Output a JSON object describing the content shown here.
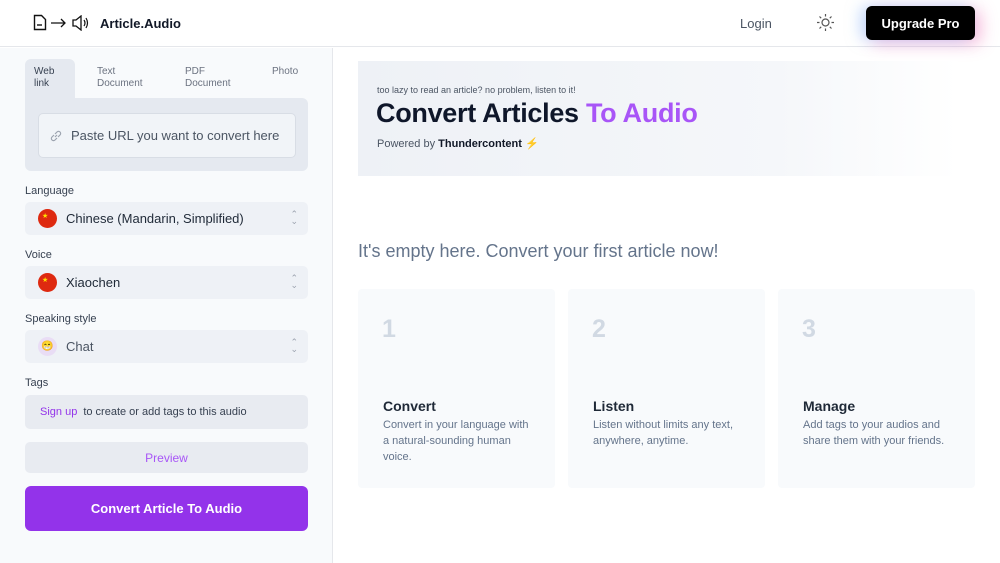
{
  "header": {
    "brand": "Article.Audio",
    "login": "Login",
    "upgrade": "Upgrade Pro",
    "icons": [
      "document-icon",
      "arrow-right-icon",
      "speaker-icon",
      "sun-icon"
    ]
  },
  "sidebar": {
    "tabs": [
      {
        "label": "Web link",
        "active": true
      },
      {
        "label": "Text Document"
      },
      {
        "label": "PDF Document"
      },
      {
        "label": "Photo"
      }
    ],
    "url_placeholder": "Paste URL you want to convert here",
    "language": {
      "label": "Language",
      "value": "Chinese (Mandarin, Simplified)"
    },
    "voice": {
      "label": "Voice",
      "value": "Xiaochen"
    },
    "style": {
      "label": "Speaking style",
      "value": "Chat"
    },
    "tags": {
      "label": "Tags",
      "link": "Sign up",
      "text": "to create or add tags to this audio"
    },
    "preview": "Preview",
    "convert": "Convert Article To Audio"
  },
  "hero": {
    "tagline": "too lazy to read an article? no problem, listen to it!",
    "title_main": "Convert Articles",
    "title_accent": "To Audio",
    "powered_prefix": "Powered by",
    "powered_brand": "Thundercontent",
    "bolt": "⚡"
  },
  "main": {
    "empty": "It's empty here. Convert your first article now!",
    "cards": [
      {
        "num": "1",
        "title": "Convert",
        "desc": "Convert in your language with a natural-sounding human voice."
      },
      {
        "num": "2",
        "title": "Listen",
        "desc": "Listen without limits any text, anywhere, anytime."
      },
      {
        "num": "3",
        "title": "Manage",
        "desc": "Add tags to your audios and share them with your friends."
      }
    ]
  },
  "colors": {
    "accent": "#9333ea",
    "accent_light": "#a855f7"
  }
}
